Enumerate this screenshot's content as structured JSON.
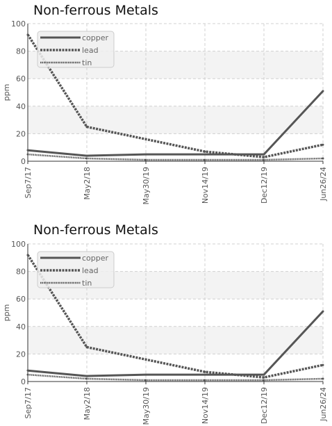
{
  "colors": {
    "band": "#f3f3f3",
    "grid": "#d0d0d0",
    "axis": "#333333",
    "series_main": "#555555",
    "legend_bg": "#eeeeee",
    "legend_border": "#cccccc"
  },
  "chart_data": [
    {
      "type": "line",
      "title": "Non-ferrous Metals",
      "ylabel": "ppm",
      "xlabel": "",
      "categories": [
        "Sep7/17",
        "May2/18",
        "May30/19",
        "Nov14/19",
        "Dec12/19",
        "Jun26/24"
      ],
      "ylim": [
        0,
        100
      ],
      "yticks": [
        "0",
        "20",
        "40",
        "60",
        "80",
        "100"
      ],
      "grid": true,
      "legend_position": "top-left",
      "series": [
        {
          "name": "copper",
          "style": "solid",
          "values": [
            8,
            4,
            5,
            5,
            5,
            51
          ]
        },
        {
          "name": "lead",
          "style": "dashed",
          "values": [
            92,
            25,
            16,
            7,
            3,
            12
          ]
        },
        {
          "name": "tin",
          "style": "dotted",
          "values": [
            5,
            2,
            1,
            1,
            1,
            2
          ]
        }
      ]
    },
    {
      "type": "line",
      "title": "Non-ferrous Metals",
      "ylabel": "ppm",
      "xlabel": "",
      "categories": [
        "Sep7/17",
        "May2/18",
        "May30/19",
        "Nov14/19",
        "Dec12/19",
        "Jun26/24"
      ],
      "ylim": [
        0,
        100
      ],
      "yticks": [
        "0",
        "20",
        "40",
        "60",
        "80",
        "100"
      ],
      "grid": true,
      "legend_position": "top-left",
      "series": [
        {
          "name": "copper",
          "style": "solid",
          "values": [
            8,
            4,
            5,
            5,
            5,
            51
          ]
        },
        {
          "name": "lead",
          "style": "dashed",
          "values": [
            92,
            25,
            16,
            7,
            3,
            12
          ]
        },
        {
          "name": "tin",
          "style": "dotted",
          "values": [
            5,
            2,
            1,
            1,
            1,
            2
          ]
        }
      ]
    }
  ]
}
